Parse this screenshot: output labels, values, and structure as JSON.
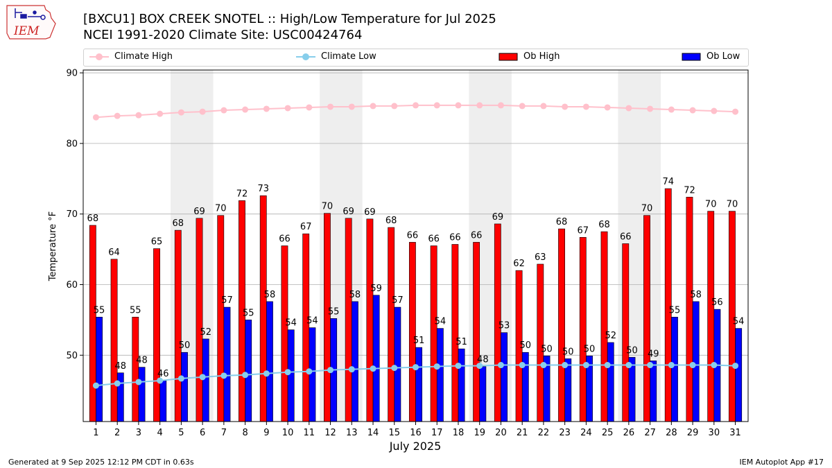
{
  "header": {
    "title_line1": "[BXCU1] BOX CREEK SNOTEL :: High/Low Temperature for Jul 2025",
    "title_line2": "NCEI 1991-2020 Climate Site: USC00424764"
  },
  "logo": {
    "text": "IEM"
  },
  "footer": {
    "left": "Generated at 9 Sep 2025 12:12 PM CDT in 0.63s",
    "right": "IEM Autoplot App #17"
  },
  "legend": {
    "climate_high": "Climate High",
    "climate_low": "Climate Low",
    "ob_high": "Ob High",
    "ob_low": "Ob Low"
  },
  "colors": {
    "ob_high": "#ff0000",
    "ob_low": "#0000ff",
    "climate_high": "#ffc0cb",
    "climate_low": "#87ceeb",
    "weekend_shade": "#eeeeee",
    "grid": "#b0b0b0"
  },
  "chart_data": {
    "type": "bar",
    "title": "[BXCU1] BOX CREEK SNOTEL :: High/Low Temperature for Jul 2025",
    "xlabel": "July 2025",
    "ylabel": "Temperature °F",
    "ylim": [
      40.6,
      90.4
    ],
    "yticks": [
      50,
      60,
      70,
      80,
      90
    ],
    "grid": "horizontal",
    "legend_position": "top",
    "categories": [
      "1",
      "2",
      "3",
      "4",
      "5",
      "6",
      "7",
      "8",
      "9",
      "10",
      "11",
      "12",
      "13",
      "14",
      "15",
      "16",
      "17",
      "18",
      "19",
      "20",
      "21",
      "22",
      "23",
      "24",
      "25",
      "26",
      "27",
      "28",
      "29",
      "30",
      "31"
    ],
    "shaded_weekends": [
      [
        5,
        6
      ],
      [
        12,
        13
      ],
      [
        19,
        20
      ],
      [
        26,
        27
      ]
    ],
    "series": [
      {
        "name": "Ob High",
        "kind": "bar",
        "values": [
          68.4,
          63.6,
          55.4,
          65.1,
          67.7,
          69.4,
          69.8,
          71.9,
          72.6,
          65.5,
          67.2,
          70.1,
          69.4,
          69.3,
          68.1,
          66.0,
          65.5,
          65.7,
          66.0,
          68.6,
          62.0,
          62.9,
          67.9,
          66.7,
          67.5,
          65.8,
          69.8,
          73.6,
          72.4,
          70.4,
          70.4
        ],
        "labels": [
          "68",
          "64",
          "55",
          "65",
          "68",
          "69",
          "70",
          "72",
          "73",
          "66",
          "67",
          "70",
          "69",
          "69",
          "68",
          "66",
          "66",
          "66",
          "66",
          "69",
          "62",
          "63",
          "68",
          "67",
          "68",
          "66",
          "70",
          "74",
          "72",
          "70",
          "70"
        ]
      },
      {
        "name": "Ob Low",
        "kind": "bar",
        "values": [
          55.4,
          47.5,
          48.3,
          46.4,
          50.4,
          52.3,
          56.8,
          55.0,
          57.6,
          53.6,
          53.9,
          55.2,
          57.6,
          58.5,
          56.8,
          51.1,
          53.8,
          50.9,
          48.4,
          53.2,
          50.4,
          49.9,
          49.5,
          49.9,
          51.8,
          49.7,
          49.2,
          55.4,
          57.6,
          56.5,
          53.8
        ],
        "labels": [
          "55",
          "48",
          "48",
          "46",
          "50",
          "52",
          "57",
          "55",
          "58",
          "54",
          "54",
          "55",
          "58",
          "59",
          "57",
          "51",
          "54",
          "51",
          "48",
          "53",
          "50",
          "50",
          "50",
          "50",
          "52",
          "50",
          "49",
          "55",
          "58",
          "56",
          "54"
        ]
      },
      {
        "name": "Climate High",
        "kind": "line",
        "values": [
          83.7,
          83.9,
          84.0,
          84.2,
          84.4,
          84.5,
          84.7,
          84.8,
          84.9,
          85.0,
          85.1,
          85.2,
          85.2,
          85.3,
          85.3,
          85.4,
          85.4,
          85.4,
          85.4,
          85.4,
          85.3,
          85.3,
          85.2,
          85.2,
          85.1,
          85.0,
          84.9,
          84.8,
          84.7,
          84.6,
          84.5
        ]
      },
      {
        "name": "Climate Low",
        "kind": "line",
        "values": [
          45.7,
          46.0,
          46.2,
          46.4,
          46.7,
          46.9,
          47.1,
          47.2,
          47.4,
          47.6,
          47.7,
          47.9,
          48.0,
          48.1,
          48.2,
          48.3,
          48.4,
          48.5,
          48.5,
          48.6,
          48.6,
          48.6,
          48.6,
          48.6,
          48.6,
          48.6,
          48.6,
          48.6,
          48.6,
          48.6,
          48.5
        ]
      }
    ]
  }
}
